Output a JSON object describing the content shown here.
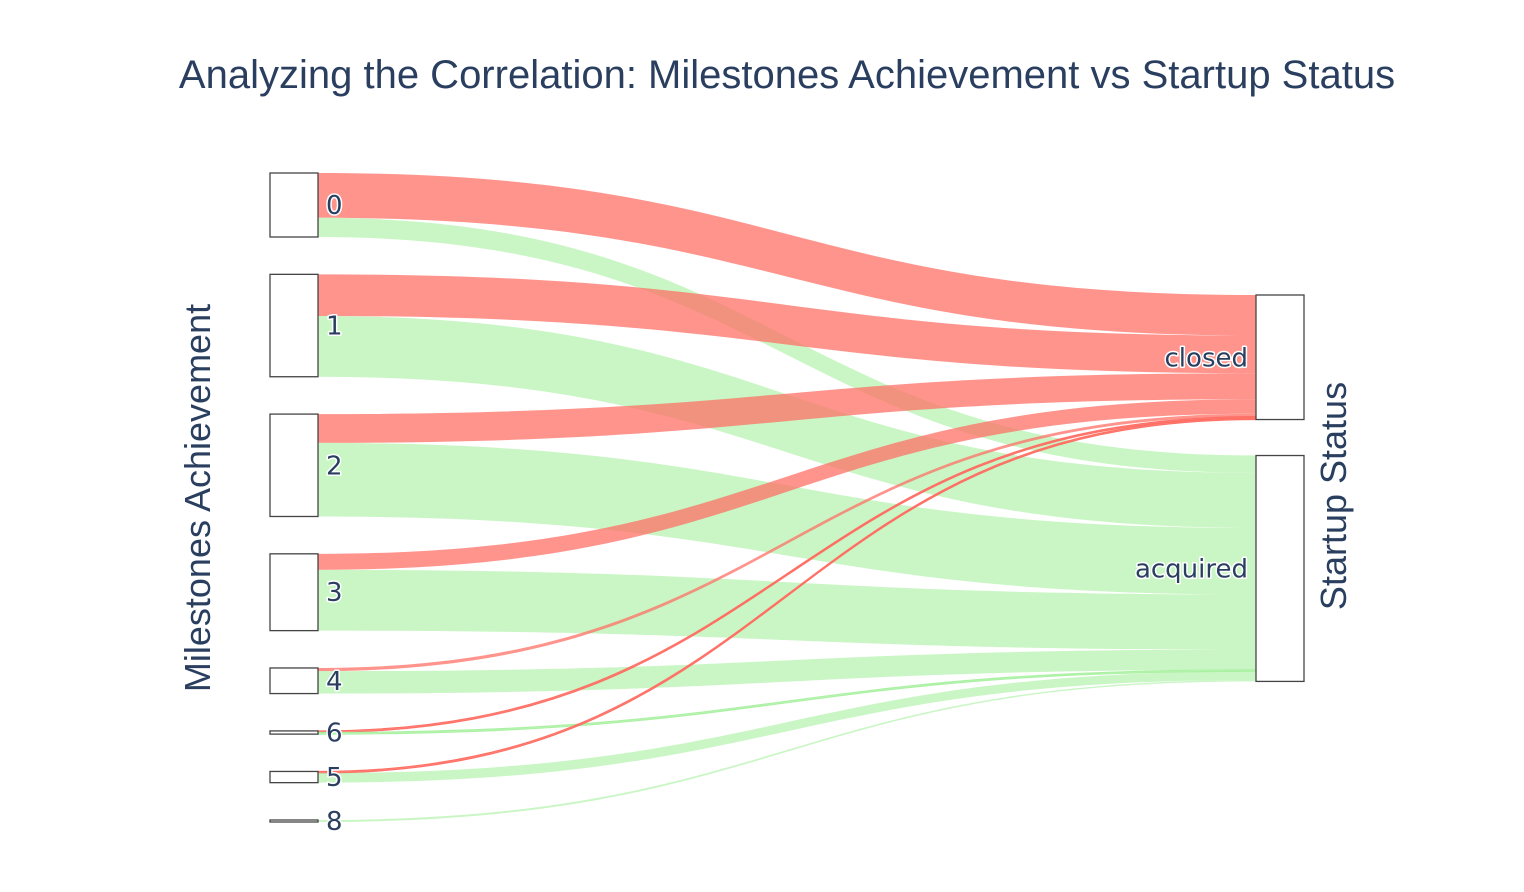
{
  "colors": {
    "closed_link": "#ff6b61",
    "acquired_link": "#a8f0a0",
    "text": "#2a3f5f",
    "node_border": "#444444"
  },
  "chart_data": {
    "type": "sankey",
    "title": "Analyzing the Correlation: Milestones Achievement vs Startup Status",
    "left_axis_title": "Milestones Achievement",
    "right_axis_title": "Startup Status",
    "source_nodes": [
      "0",
      "1",
      "2",
      "3",
      "4",
      "6",
      "5",
      "8"
    ],
    "target_nodes": [
      "closed",
      "acquired"
    ],
    "links": [
      {
        "source": "0",
        "target": "closed",
        "value": 14
      },
      {
        "source": "0",
        "target": "acquired",
        "value": 6
      },
      {
        "source": "1",
        "target": "closed",
        "value": 13
      },
      {
        "source": "1",
        "target": "acquired",
        "value": 19
      },
      {
        "source": "2",
        "target": "closed",
        "value": 9
      },
      {
        "source": "2",
        "target": "acquired",
        "value": 23
      },
      {
        "source": "3",
        "target": "closed",
        "value": 5
      },
      {
        "source": "3",
        "target": "acquired",
        "value": 19
      },
      {
        "source": "4",
        "target": "closed",
        "value": 1
      },
      {
        "source": "4",
        "target": "acquired",
        "value": 7
      },
      {
        "source": "6",
        "target": "closed",
        "value": 0.5
      },
      {
        "source": "6",
        "target": "acquired",
        "value": 0.5
      },
      {
        "source": "5",
        "target": "closed",
        "value": 0.5
      },
      {
        "source": "5",
        "target": "acquired",
        "value": 3
      },
      {
        "source": "8",
        "target": "acquired",
        "value": 0.5
      }
    ]
  }
}
